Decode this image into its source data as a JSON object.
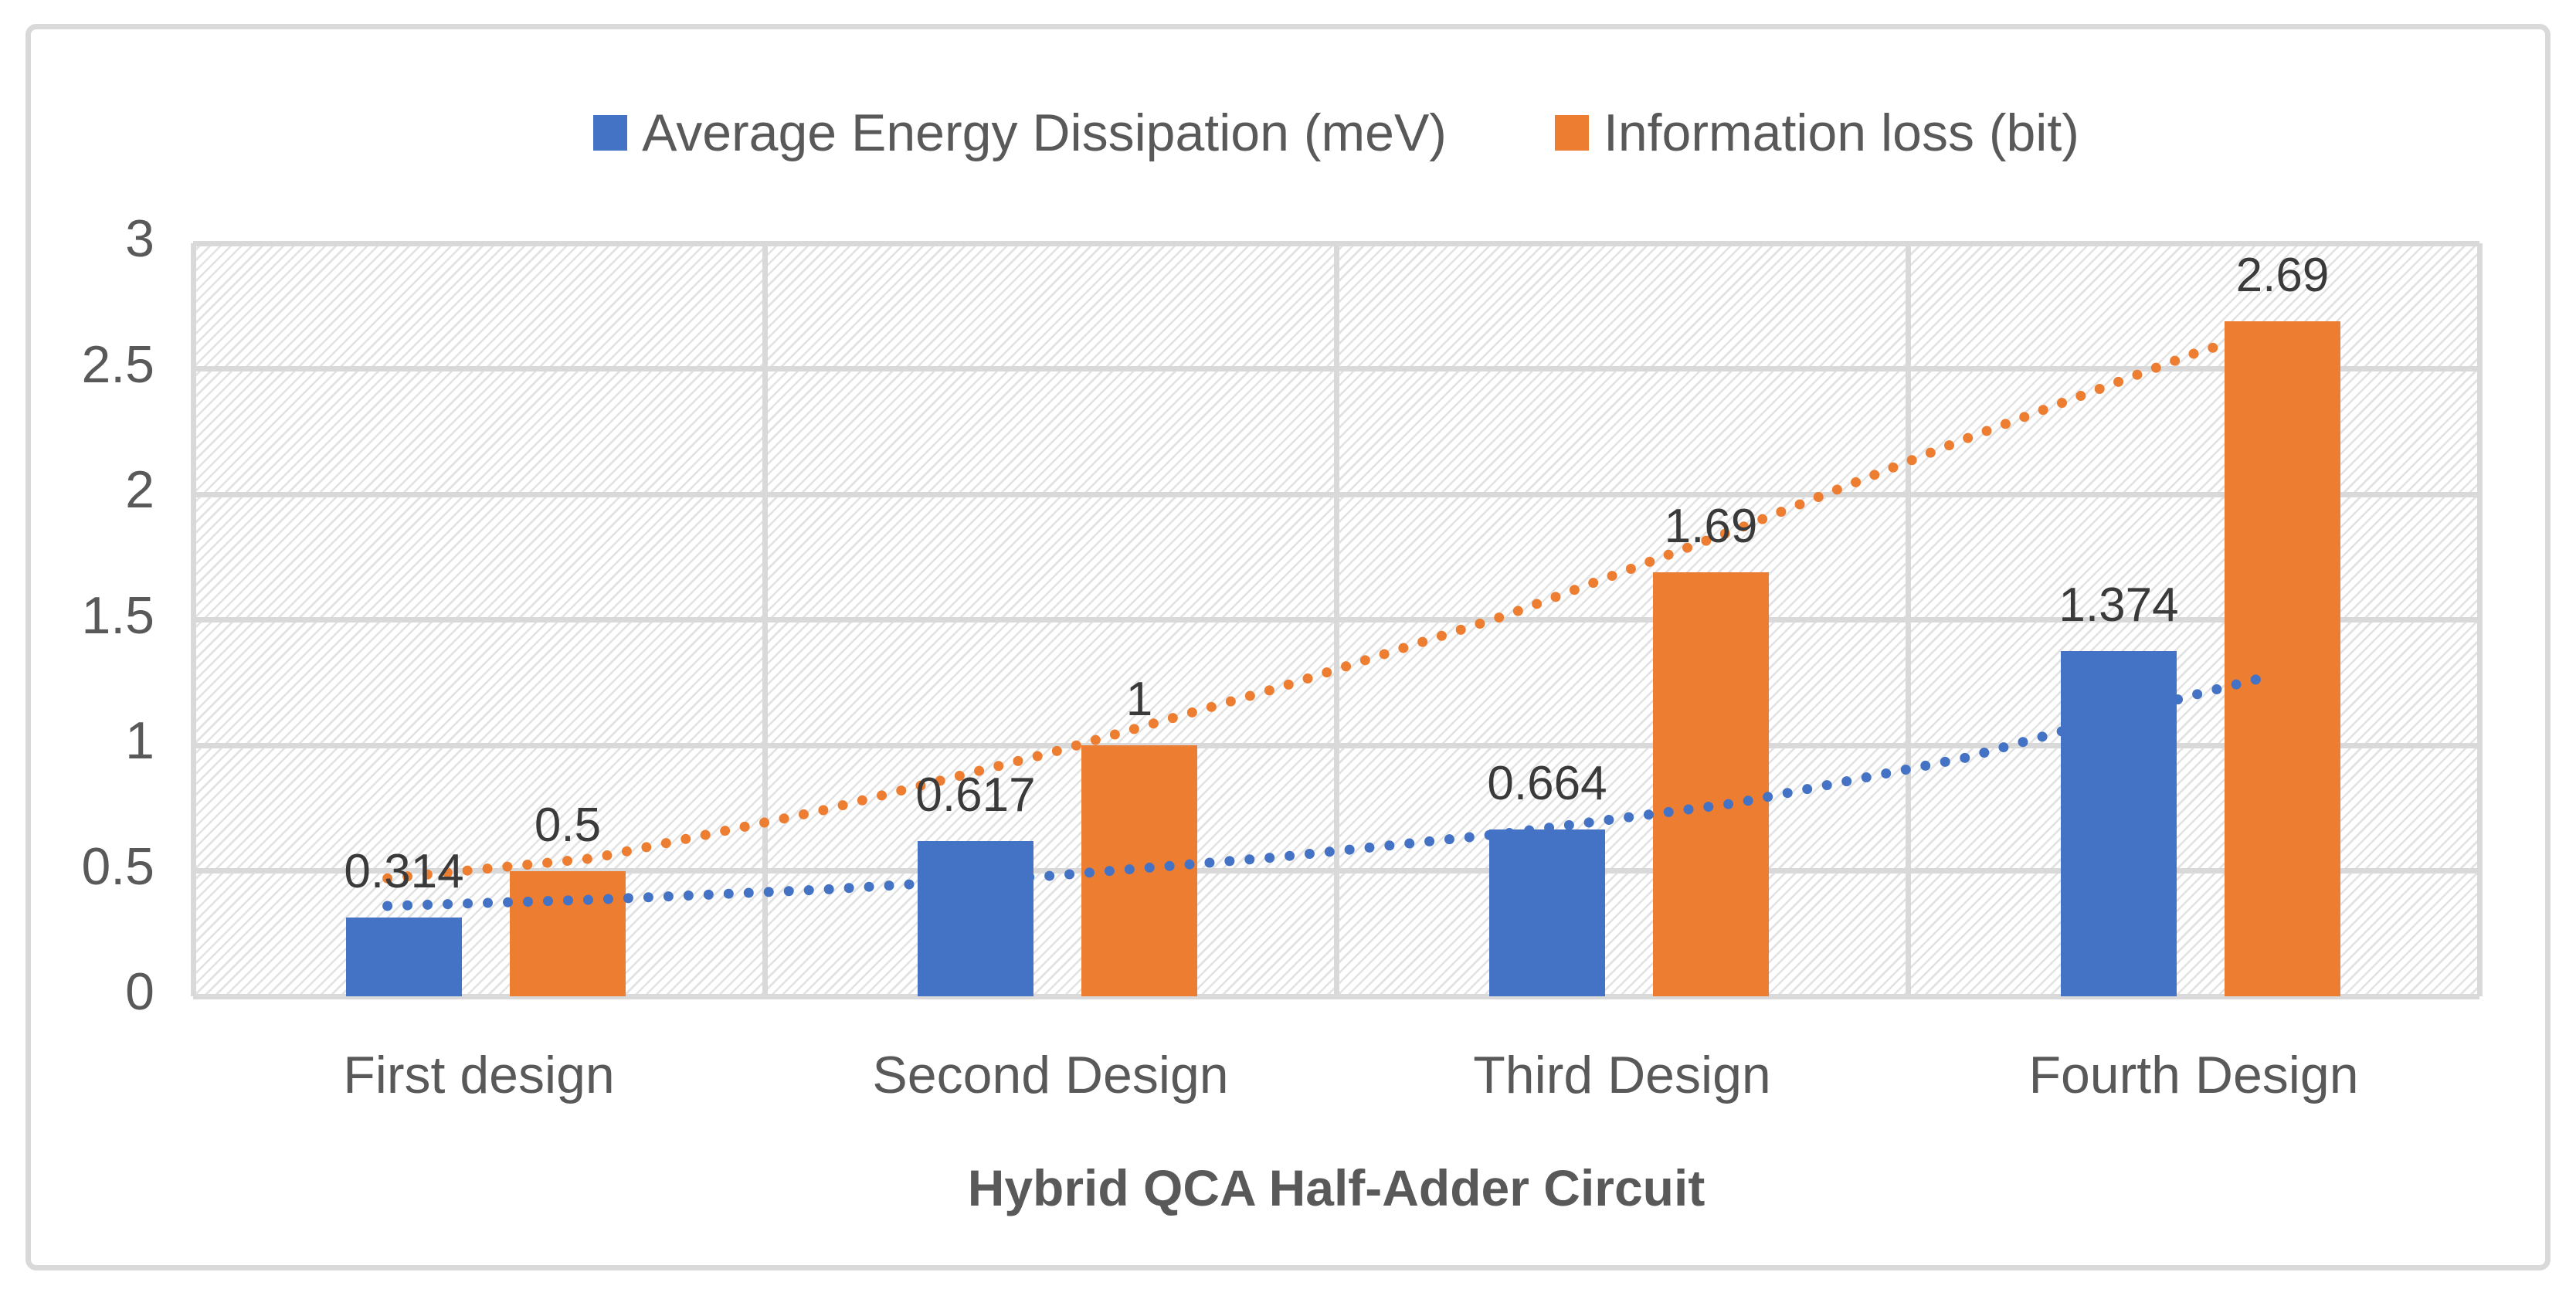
{
  "legend": {
    "items": [
      {
        "label": "Average Energy Dissipation (meV)",
        "color": "#4472C4"
      },
      {
        "label": "Information loss (bit)",
        "color": "#ED7D31"
      }
    ]
  },
  "chart_data": {
    "type": "bar",
    "title": "",
    "xlabel": "Hybrid QCA Half-Adder Circuit",
    "ylabel": "",
    "categories": [
      "First design",
      "Second Design",
      "Third Design",
      "Fourth Design"
    ],
    "series": [
      {
        "name": "Average Energy Dissipation (meV)",
        "color": "#4472C4",
        "values": [
          0.314,
          0.617,
          0.664,
          1.374
        ],
        "labels": [
          "0.314",
          "0.617",
          "0.664",
          "1.374"
        ]
      },
      {
        "name": "Information loss (bit)",
        "color": "#ED7D31",
        "values": [
          0.5,
          1,
          1.69,
          2.69
        ],
        "labels": [
          "0.5",
          "1",
          "1.69",
          "2.69"
        ]
      }
    ],
    "ylim": [
      0,
      3
    ],
    "yticks": [
      0,
      0.5,
      1,
      1.5,
      2,
      2.5,
      3
    ],
    "ytick_labels": [
      "0",
      "0.5",
      "1",
      "1.5",
      "2",
      "2.5",
      "3"
    ],
    "grid": true,
    "legend_position": "top",
    "plot_background": "diagonal-hatch",
    "trendlines": [
      {
        "series": "Average Energy Dissipation (meV)",
        "color": "#4472C4",
        "style": "dotted",
        "points": [
          [
            0.84,
            0.36
          ],
          [
            1.2,
            0.385
          ],
          [
            1.6,
            0.425
          ],
          [
            2,
            0.48
          ],
          [
            2.4,
            0.555
          ],
          [
            2.8,
            0.65
          ],
          [
            3.2,
            0.77
          ],
          [
            3.6,
            0.95
          ],
          [
            4,
            1.2
          ],
          [
            4.14,
            1.28
          ]
        ]
      },
      {
        "series": "Information loss (bit)",
        "color": "#ED7D31",
        "style": "dotted",
        "points": [
          [
            0.84,
            0.47
          ],
          [
            1.2,
            0.55
          ],
          [
            1.6,
            0.74
          ],
          [
            2,
            0.97
          ],
          [
            2.4,
            1.23
          ],
          [
            2.8,
            1.52
          ],
          [
            3.2,
            1.86
          ],
          [
            3.6,
            2.22
          ],
          [
            4,
            2.56
          ],
          [
            4.14,
            2.66
          ]
        ]
      }
    ]
  },
  "colors": {
    "grid": "#D9D9D9",
    "border": "#D9D9D9",
    "axis_text": "#595959",
    "data_label": "#3A3A3A",
    "background": "#FFFFFF"
  }
}
